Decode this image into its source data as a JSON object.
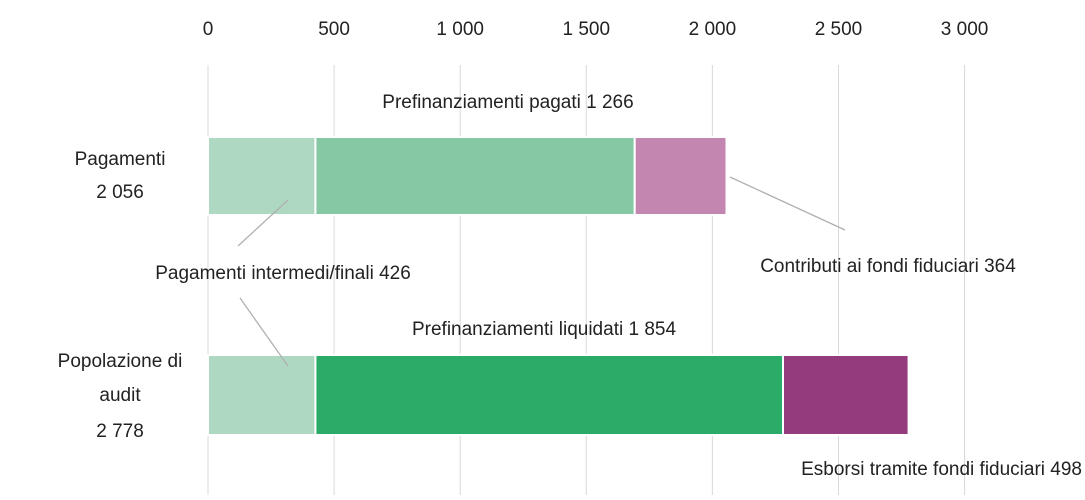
{
  "chart_data": {
    "type": "bar",
    "orientation": "horizontal",
    "stacked": true,
    "categories": [
      [
        "Pagamenti",
        "2 056"
      ],
      [
        "Popolazione di",
        "audit",
        "2 778"
      ]
    ],
    "series": [
      {
        "values": [
          426,
          426
        ],
        "colors": [
          "#aed8c1",
          "#aed8c1"
        ],
        "labels": [
          "Pagamenti intermedi/finali 426",
          null
        ]
      },
      {
        "values": [
          1266,
          1854
        ],
        "colors": [
          "#86c8a3",
          "#2aab68"
        ],
        "labels": [
          "Prefinanziamenti pagati 1 266",
          "Prefinanziamenti liquidati  1 854"
        ]
      },
      {
        "values": [
          364,
          498
        ],
        "colors": [
          "#c386b0",
          "#943b7d"
        ],
        "labels": [
          "Contributi ai fondi fiduciari 364",
          "Esborsi tramite fondi fiduciari 498"
        ]
      }
    ],
    "xlim": [
      0,
      3200
    ],
    "xticks": [
      0,
      500,
      {
        "value": 1000,
        "label": "1 000"
      },
      {
        "value": 1500,
        "label": "1 500"
      },
      {
        "value": 2000,
        "label": "2 000"
      },
      {
        "value": 2500,
        "label": "2 500"
      },
      {
        "value": 3000,
        "label": "3 000"
      }
    ],
    "grid": true
  }
}
